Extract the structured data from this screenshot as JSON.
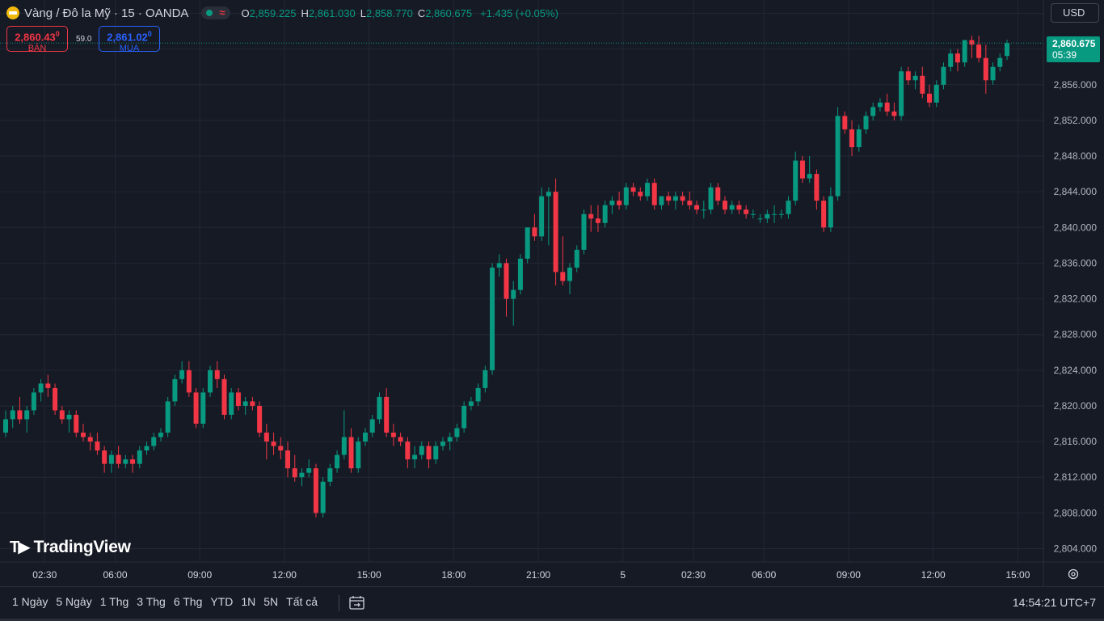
{
  "header": {
    "symbol": "Vàng / Đô la Mỹ · 15 · OANDA",
    "ohlc": {
      "o_label": "O",
      "o": "2,859.225",
      "h_label": "H",
      "h": "2,861.030",
      "l_label": "L",
      "l": "2,858.770",
      "c_label": "C",
      "c": "2,860.675",
      "change": "+1.435 (+0.05%)"
    },
    "sell": {
      "price": "2,860.43",
      "sup": "0",
      "label": "BÁN"
    },
    "buy": {
      "price": "2,861.02",
      "sup": "0",
      "label": "MUA"
    },
    "spread": "59.0",
    "currency": "USD",
    "last_price": "2,860.675",
    "countdown": "05:39"
  },
  "watermark": "TradingView",
  "bottom": {
    "periods": [
      "1 Ngày",
      "5 Ngày",
      "1 Thg",
      "3 Thg",
      "6 Thg",
      "YTD",
      "1N",
      "5N",
      "Tất cả"
    ],
    "clock": "14:54:21 UTC+7"
  },
  "colors": {
    "up": "#089981",
    "down": "#f23645",
    "bg": "#161a25",
    "grid": "#232734"
  },
  "chart_data": {
    "type": "candlestick",
    "ylim": [
      2802.5,
      2865.5
    ],
    "y_ticks": [
      2804,
      2808,
      2812,
      2816,
      2820,
      2824,
      2828,
      2832,
      2836,
      2840,
      2844,
      2848,
      2852,
      2856,
      2860,
      2864
    ],
    "x_ticks": [
      "02:30",
      "06:00",
      "09:00",
      "12:00",
      "15:00",
      "18:00",
      "21:00",
      "5",
      "02:30",
      "06:00",
      "09:00",
      "12:00",
      "15:00"
    ],
    "last_price": 2860.675,
    "candles": [
      [
        2817,
        2819.5,
        2816.5,
        2818.5
      ],
      [
        2818.5,
        2820,
        2817.5,
        2819.5
      ],
      [
        2819.5,
        2821,
        2818,
        2818.5
      ],
      [
        2818.5,
        2820,
        2817,
        2819.5
      ],
      [
        2819.5,
        2822,
        2819,
        2821.5
      ],
      [
        2821.5,
        2823,
        2820.5,
        2822.5
      ],
      [
        2822.5,
        2823.5,
        2821,
        2822
      ],
      [
        2822,
        2822.5,
        2819,
        2819.5
      ],
      [
        2819.5,
        2820,
        2818,
        2818.5
      ],
      [
        2818.5,
        2819.5,
        2817,
        2819
      ],
      [
        2819,
        2819.5,
        2816.5,
        2817
      ],
      [
        2817,
        2818,
        2816,
        2816.5
      ],
      [
        2816.5,
        2817,
        2815,
        2816
      ],
      [
        2816,
        2817,
        2814.5,
        2815
      ],
      [
        2815,
        2815.5,
        2812.5,
        2813.5
      ],
      [
        2813.5,
        2815,
        2812.5,
        2814.5
      ],
      [
        2814.5,
        2815.5,
        2813,
        2813.5
      ],
      [
        2813.5,
        2814.5,
        2813,
        2814
      ],
      [
        2814,
        2814.5,
        2812.5,
        2813.5
      ],
      [
        2813.5,
        2815.5,
        2813,
        2815
      ],
      [
        2815,
        2816,
        2814.5,
        2815.5
      ],
      [
        2815.5,
        2817,
        2815,
        2816.5
      ],
      [
        2816.5,
        2817.5,
        2816,
        2817
      ],
      [
        2817,
        2821,
        2816.5,
        2820.5
      ],
      [
        2820.5,
        2823.5,
        2820,
        2823
      ],
      [
        2823,
        2825,
        2822.5,
        2824
      ],
      [
        2824,
        2825,
        2821,
        2821.5
      ],
      [
        2821.5,
        2822,
        2817.5,
        2818
      ],
      [
        2818,
        2822,
        2817.5,
        2821.5
      ],
      [
        2821.5,
        2824.5,
        2821,
        2824
      ],
      [
        2824,
        2825,
        2822,
        2823
      ],
      [
        2823,
        2823.5,
        2818.5,
        2819
      ],
      [
        2819,
        2822,
        2818.5,
        2821.5
      ],
      [
        2821.5,
        2822,
        2819.5,
        2820
      ],
      [
        2820,
        2821,
        2819,
        2820.5
      ],
      [
        2820.5,
        2821,
        2819.5,
        2820
      ],
      [
        2820,
        2820.5,
        2816.5,
        2817
      ],
      [
        2817,
        2818,
        2814,
        2816
      ],
      [
        2816,
        2817,
        2814.5,
        2815.5
      ],
      [
        2815.5,
        2816.5,
        2814,
        2815
      ],
      [
        2815,
        2816,
        2812,
        2813
      ],
      [
        2813,
        2814.5,
        2811.5,
        2812
      ],
      [
        2812,
        2813,
        2811,
        2812.5
      ],
      [
        2812.5,
        2814,
        2812,
        2813
      ],
      [
        2813,
        2813.5,
        2807.5,
        2808
      ],
      [
        2808,
        2812,
        2807.5,
        2811.5
      ],
      [
        2811.5,
        2813.5,
        2811,
        2813
      ],
      [
        2813,
        2815,
        2812.5,
        2814.5
      ],
      [
        2814.5,
        2819.5,
        2814,
        2816.5
      ],
      [
        2816.5,
        2817.5,
        2812.5,
        2813
      ],
      [
        2813,
        2816.5,
        2812.5,
        2816
      ],
      [
        2816,
        2817.5,
        2815.5,
        2817
      ],
      [
        2817,
        2819,
        2816.5,
        2818.5
      ],
      [
        2818.5,
        2821.5,
        2818,
        2821
      ],
      [
        2821,
        2822,
        2816.5,
        2817
      ],
      [
        2817,
        2818,
        2815.5,
        2816.5
      ],
      [
        2816.5,
        2817,
        2815.5,
        2816
      ],
      [
        2816,
        2816.5,
        2813,
        2814
      ],
      [
        2814,
        2815.5,
        2813,
        2814.5
      ],
      [
        2814.5,
        2816,
        2814,
        2815.5
      ],
      [
        2815.5,
        2816,
        2813,
        2814
      ],
      [
        2814,
        2816,
        2813.5,
        2815.5
      ],
      [
        2815.5,
        2816.5,
        2815,
        2816
      ],
      [
        2816,
        2817,
        2815,
        2816.5
      ],
      [
        2816.5,
        2818,
        2816,
        2817.5
      ],
      [
        2817.5,
        2820.5,
        2817,
        2820
      ],
      [
        2820,
        2821,
        2819.5,
        2820.5
      ],
      [
        2820.5,
        2822.5,
        2820,
        2822
      ],
      [
        2822,
        2824.5,
        2821.5,
        2824
      ],
      [
        2824,
        2836,
        2823.5,
        2835.5
      ],
      [
        2835.5,
        2837,
        2834.5,
        2836
      ],
      [
        2836,
        2836.5,
        2830,
        2832
      ],
      [
        2832,
        2834,
        2829,
        2833
      ],
      [
        2833,
        2837,
        2832.5,
        2836.5
      ],
      [
        2836.5,
        2840,
        2836,
        2840
      ],
      [
        2840,
        2841.5,
        2838.5,
        2839
      ],
      [
        2839,
        2844.5,
        2838.5,
        2843.5
      ],
      [
        2843.5,
        2844.5,
        2838,
        2844
      ],
      [
        2844,
        2845.5,
        2833.5,
        2835
      ],
      [
        2835,
        2839,
        2833.5,
        2834
      ],
      [
        2834,
        2836,
        2832.5,
        2835.5
      ],
      [
        2835.5,
        2838,
        2835,
        2837.5
      ],
      [
        2837.5,
        2842,
        2837,
        2841.5
      ],
      [
        2841.5,
        2842.5,
        2839.5,
        2841
      ],
      [
        2841,
        2842.5,
        2839.5,
        2840.5
      ],
      [
        2840.5,
        2843,
        2840,
        2842.5
      ],
      [
        2842.5,
        2843.5,
        2841.5,
        2843
      ],
      [
        2843,
        2844,
        2842,
        2842.5
      ],
      [
        2842.5,
        2845,
        2842,
        2844.5
      ],
      [
        2844.5,
        2845,
        2843.5,
        2844
      ],
      [
        2844,
        2844.5,
        2843,
        2843.5
      ],
      [
        2843.5,
        2845.5,
        2843,
        2845
      ],
      [
        2845,
        2845.5,
        2842,
        2842.5
      ],
      [
        2842.5,
        2843.5,
        2842,
        2843.5
      ],
      [
        2843.5,
        2844,
        2842.5,
        2843
      ],
      [
        2843,
        2844,
        2842,
        2843.5
      ],
      [
        2843.5,
        2844,
        2842.5,
        2843
      ],
      [
        2843,
        2844,
        2842,
        2842.5
      ],
      [
        2842.5,
        2843,
        2841.5,
        2842
      ],
      [
        2842,
        2843,
        2841,
        2842
      ],
      [
        2842,
        2845,
        2841.5,
        2844.5
      ],
      [
        2844.5,
        2845,
        2842.5,
        2843
      ],
      [
        2843,
        2843.5,
        2841.5,
        2842
      ],
      [
        2842,
        2843,
        2841.5,
        2842.5
      ],
      [
        2842.5,
        2843,
        2841.5,
        2842
      ],
      [
        2842,
        2842.5,
        2841,
        2841.5
      ],
      [
        2841.5,
        2842,
        2841,
        2841.5
      ],
      [
        2841,
        2841.5,
        2840.5,
        2841
      ],
      [
        2841,
        2842,
        2840.5,
        2841.5
      ],
      [
        2841.5,
        2842.5,
        2840.5,
        2841.5
      ],
      [
        2841.5,
        2842,
        2841,
        2841.5
      ],
      [
        2841.5,
        2843.5,
        2841,
        2843
      ],
      [
        2843,
        2848.5,
        2842.5,
        2847.5
      ],
      [
        2847.5,
        2848,
        2845,
        2845.5
      ],
      [
        2845.5,
        2848,
        2845,
        2846
      ],
      [
        2846,
        2846.5,
        2842,
        2843
      ],
      [
        2843,
        2843.5,
        2839.5,
        2840
      ],
      [
        2840,
        2844.5,
        2839.5,
        2843.5
      ],
      [
        2843.5,
        2853.5,
        2843,
        2852.5
      ],
      [
        2852.5,
        2853,
        2850.5,
        2851
      ],
      [
        2851,
        2852,
        2848,
        2849
      ],
      [
        2849,
        2851.5,
        2848.5,
        2851
      ],
      [
        2851,
        2853,
        2850.5,
        2852.5
      ],
      [
        2852.5,
        2854,
        2852,
        2853.5
      ],
      [
        2853.5,
        2854.5,
        2853,
        2854
      ],
      [
        2854,
        2855,
        2852.5,
        2853
      ],
      [
        2853,
        2854,
        2852,
        2852.5
      ],
      [
        2852.5,
        2858,
        2852,
        2857.5
      ],
      [
        2857.5,
        2858,
        2856,
        2856.5
      ],
      [
        2856.5,
        2857.5,
        2855.5,
        2857
      ],
      [
        2857,
        2858,
        2854.5,
        2855
      ],
      [
        2855,
        2856,
        2853.5,
        2854
      ],
      [
        2854,
        2856.5,
        2853.5,
        2856
      ],
      [
        2856,
        2858.5,
        2855.5,
        2858
      ],
      [
        2858,
        2860,
        2857.5,
        2859.5
      ],
      [
        2859.5,
        2860,
        2857.5,
        2858.5
      ],
      [
        2858.5,
        2861,
        2858,
        2861
      ],
      [
        2861,
        2861.5,
        2859,
        2860.5
      ],
      [
        2860.5,
        2861.5,
        2858.5,
        2859
      ],
      [
        2859,
        2860.5,
        2855,
        2856.5
      ],
      [
        2856.5,
        2858.5,
        2856,
        2858
      ],
      [
        2858,
        2859.5,
        2857.5,
        2859
      ],
      [
        2859.225,
        2861.03,
        2858.77,
        2860.675
      ]
    ]
  }
}
